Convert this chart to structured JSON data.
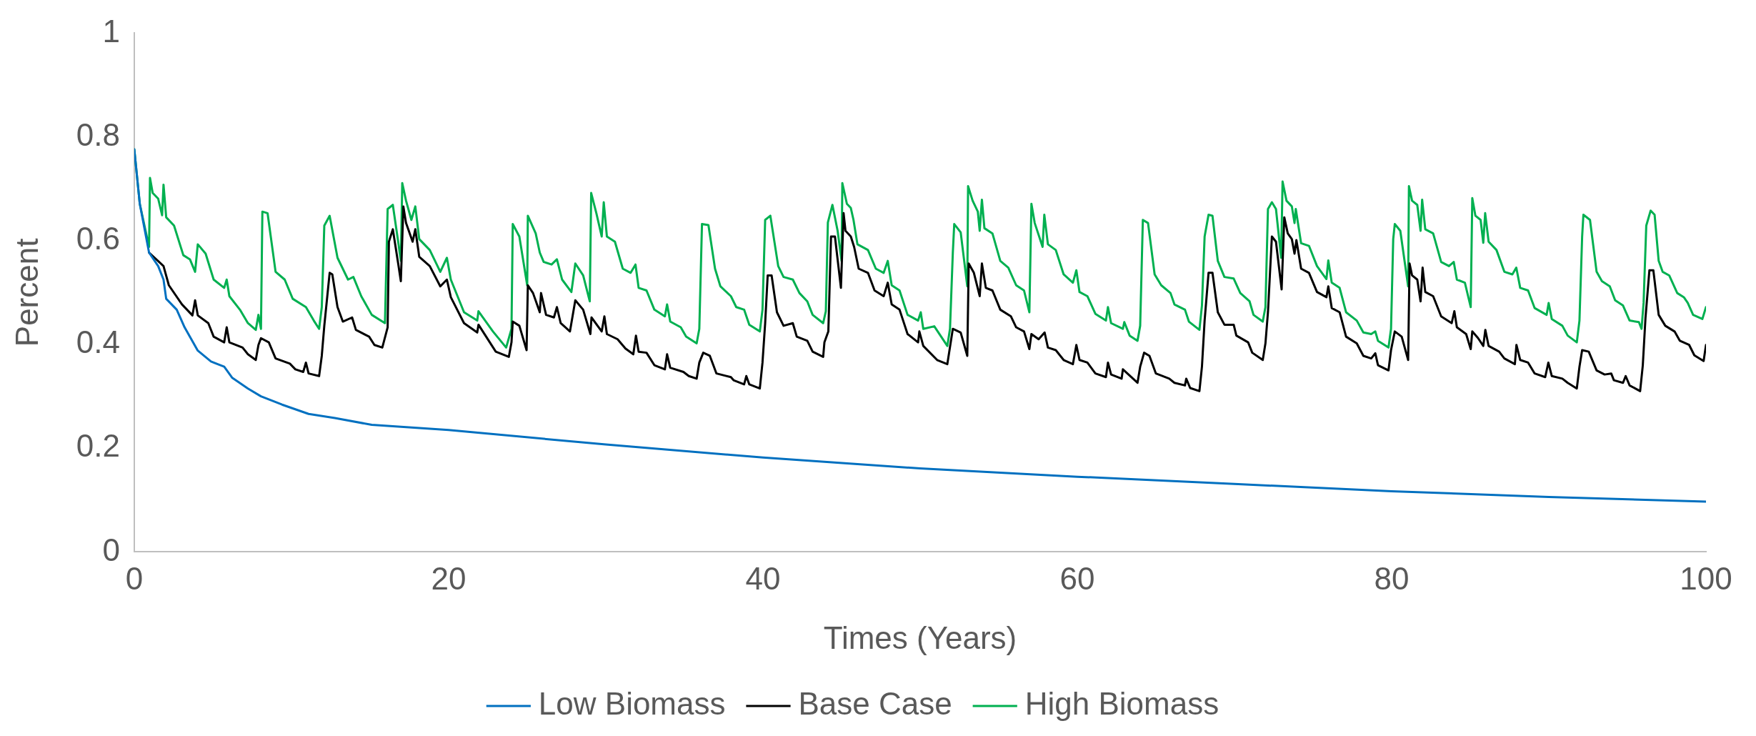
{
  "chart_data": {
    "type": "line",
    "xlabel": "Times (Years)",
    "ylabel": "Percent",
    "xlim": [
      0,
      100
    ],
    "xticks": [
      0,
      20,
      40,
      60,
      80,
      100
    ],
    "ylim": [
      0,
      1
    ],
    "yticks": [
      0,
      {
        "value": 0.2,
        "label": "0.2"
      },
      {
        "value": 0.4,
        "label": "0.4"
      },
      {
        "value": 0.6,
        "label": "0.6"
      },
      {
        "value": 0.8,
        "label": "0.8"
      },
      1
    ],
    "grid": false,
    "legend": "bottom",
    "marker": "none",
    "line_style": "solid",
    "series": [
      {
        "name": "Low Biomass",
        "color": "#0070c0",
        "x": [
          0,
          0.35,
          0.94,
          1.52,
          1.86,
          2.03,
          2.7,
          3.2,
          4.04,
          4.88,
          5.72,
          6.22,
          7.23,
          8.06,
          9.4,
          11.09,
          12.76,
          15.11,
          20,
          30,
          40,
          50,
          60,
          70,
          80,
          90,
          100
        ],
        "values": [
          0.776,
          0.671,
          0.577,
          0.551,
          0.525,
          0.488,
          0.467,
          0.433,
          0.388,
          0.367,
          0.357,
          0.336,
          0.315,
          0.3,
          0.284,
          0.266,
          0.258,
          0.245,
          0.235,
          0.207,
          0.182,
          0.161,
          0.145,
          0.131,
          0.117,
          0.106,
          0.097
        ]
      },
      {
        "name": "Base Case",
        "color": "#000000",
        "x": [
          0.94,
          1.86,
          2.2,
          3.04,
          3.7,
          3.87,
          4.04,
          4.71,
          5.05,
          5.72,
          5.88,
          6.05,
          6.89,
          7.23,
          7.73,
          7.9,
          8.06,
          8.56,
          8.99,
          9.9,
          10.25,
          10.75,
          10.92,
          11.09,
          11.76,
          11.93,
          12.09,
          12.43,
          12.6,
          12.93,
          13.27,
          13.86,
          14.1,
          14.94,
          15.28,
          15.78,
          16.12,
          16.2,
          16.45,
          16.79,
          16.96,
          17.12,
          17.29,
          17.71,
          17.88,
          18.13,
          18.8,
          19.47,
          19.89,
          20.14,
          20.98,
          21.82,
          21.9,
          23,
          23.83,
          24,
          24.08,
          24.5,
          24.96,
          25.04,
          25.37,
          25.8,
          25.88,
          26.2,
          26.7,
          26.89,
          27.13,
          27.72,
          28.06,
          28.56,
          29.02,
          29.09,
          29.74,
          29.91,
          30.07,
          30.75,
          31.25,
          31.75,
          31.92,
          32.09,
          32.59,
          33.09,
          33.76,
          33.9,
          34.1,
          34.94,
          35.28,
          35.78,
          35.95,
          36.2,
          36.62,
          37.04,
          37.96,
          38.13,
          38.8,
          38.94,
          39.13,
          39.8,
          39.97,
          40.14,
          40.3,
          40.55,
          40.89,
          41.31,
          41.9,
          42.15,
          42.82,
          43.16,
          43.83,
          43.91,
          44.16,
          44.33,
          44.58,
          44.96,
          45.13,
          45.25,
          45.59,
          45.8,
          46.09,
          46.68,
          47.1,
          47.68,
          47.94,
          48.19,
          48.69,
          49.2,
          49.87,
          49.95,
          50.2,
          51.08,
          51.73,
          52.08,
          52.58,
          53,
          53.09,
          53.42,
          53.79,
          53.93,
          54.18,
          54.6,
          55.1,
          55.78,
          56.11,
          56.61,
          56.95,
          57.08,
          57.54,
          57.92,
          58.13,
          58.63,
          59.13,
          59.72,
          59.94,
          60.14,
          60.64,
          61.15,
          61.82,
          61.95,
          62.15,
          62.82,
          62.9,
          63.83,
          64,
          64.25,
          64.59,
          65,
          65.85,
          66.18,
          66.85,
          66.93,
          67.18,
          67.77,
          67.93,
          68.1,
          68.35,
          68.6,
          68.94,
          69.36,
          69.95,
          70.12,
          70.87,
          71.13,
          71.8,
          71.97,
          72.13,
          72.38,
          72.64,
          73,
          73.17,
          73.39,
          73.65,
          73.82,
          73.94,
          74.24,
          74.74,
          75.25,
          75.85,
          75.97,
          76.19,
          76.69,
          77.1,
          77.78,
          78.2,
          78.7,
          78.96,
          79.13,
          79.8,
          79.96,
          80.2,
          80.64,
          81.05,
          81.14,
          81.3,
          81.63,
          81.84,
          81.97,
          82.14,
          82.64,
          83.15,
          83.82,
          83.99,
          84.15,
          84.74,
          85.03,
          85.13,
          85.5,
          85.83,
          85.96,
          86.17,
          86.84,
          87.17,
          87.84,
          87.94,
          88.18,
          88.68,
          89.1,
          89.77,
          89.97,
          90.19,
          90.86,
          91.2,
          91.78,
          91.95,
          92.12,
          92.54,
          93.04,
          93.55,
          93.97,
          94.14,
          94.72,
          94.89,
          95.14,
          95.81,
          95.98,
          96.15,
          96.4,
          96.65,
          96.99,
          97.41,
          98,
          98.34,
          98.93,
          99.26,
          99.85,
          100
        ],
        "values": [
          0.577,
          0.551,
          0.514,
          0.477,
          0.456,
          0.485,
          0.456,
          0.441,
          0.415,
          0.404,
          0.433,
          0.404,
          0.394,
          0.381,
          0.37,
          0.399,
          0.412,
          0.404,
          0.373,
          0.363,
          0.352,
          0.347,
          0.365,
          0.344,
          0.339,
          0.378,
          0.436,
          0.538,
          0.535,
          0.472,
          0.444,
          0.452,
          0.428,
          0.415,
          0.399,
          0.394,
          0.433,
          0.598,
          0.622,
          0.556,
          0.522,
          0.666,
          0.634,
          0.598,
          0.622,
          0.569,
          0.551,
          0.512,
          0.525,
          0.491,
          0.441,
          0.423,
          0.438,
          0.386,
          0.376,
          0.404,
          0.444,
          0.436,
          0.389,
          0.514,
          0.499,
          0.462,
          0.499,
          0.457,
          0.452,
          0.472,
          0.441,
          0.425,
          0.485,
          0.467,
          0.42,
          0.452,
          0.425,
          0.454,
          0.42,
          0.41,
          0.392,
          0.381,
          0.417,
          0.386,
          0.384,
          0.36,
          0.352,
          0.381,
          0.355,
          0.347,
          0.339,
          0.334,
          0.365,
          0.384,
          0.378,
          0.344,
          0.337,
          0.331,
          0.323,
          0.339,
          0.323,
          0.315,
          0.365,
          0.441,
          0.533,
          0.533,
          0.462,
          0.436,
          0.441,
          0.415,
          0.407,
          0.386,
          0.376,
          0.404,
          0.425,
          0.608,
          0.608,
          0.509,
          0.653,
          0.619,
          0.608,
          0.588,
          0.546,
          0.538,
          0.504,
          0.493,
          0.519,
          0.477,
          0.467,
          0.42,
          0.404,
          0.425,
          0.397,
          0.37,
          0.362,
          0.43,
          0.423,
          0.378,
          0.556,
          0.538,
          0.493,
          0.556,
          0.509,
          0.504,
          0.467,
          0.454,
          0.433,
          0.425,
          0.391,
          0.42,
          0.41,
          0.423,
          0.394,
          0.389,
          0.37,
          0.362,
          0.399,
          0.37,
          0.365,
          0.344,
          0.337,
          0.365,
          0.342,
          0.334,
          0.352,
          0.326,
          0.357,
          0.384,
          0.378,
          0.344,
          0.334,
          0.326,
          0.321,
          0.334,
          0.316,
          0.31,
          0.357,
          0.446,
          0.538,
          0.538,
          0.462,
          0.438,
          0.438,
          0.417,
          0.404,
          0.384,
          0.37,
          0.402,
          0.462,
          0.608,
          0.598,
          0.506,
          0.645,
          0.614,
          0.603,
          0.575,
          0.601,
          0.546,
          0.538,
          0.501,
          0.491,
          0.512,
          0.47,
          0.462,
          0.415,
          0.402,
          0.378,
          0.373,
          0.383,
          0.36,
          0.35,
          0.389,
          0.425,
          0.415,
          0.37,
          0.556,
          0.533,
          0.525,
          0.483,
          0.548,
          0.501,
          0.493,
          0.454,
          0.441,
          0.464,
          0.433,
          0.42,
          0.391,
          0.425,
          0.412,
          0.397,
          0.428,
          0.397,
          0.386,
          0.373,
          0.362,
          0.399,
          0.37,
          0.365,
          0.344,
          0.337,
          0.365,
          0.339,
          0.334,
          0.326,
          0.315,
          0.357,
          0.389,
          0.386,
          0.35,
          0.342,
          0.344,
          0.331,
          0.326,
          0.339,
          0.321,
          0.31,
          0.36,
          0.451,
          0.543,
          0.543,
          0.457,
          0.436,
          0.425,
          0.407,
          0.399,
          0.379,
          0.368,
          0.399
        ]
      },
      {
        "name": "High Biomass",
        "color": "#00b050",
        "x": [
          0,
          0.35,
          0.94,
          1,
          1.17,
          1.52,
          1.77,
          1.86,
          2.03,
          2.53,
          3.12,
          3.54,
          3.87,
          4.04,
          4.54,
          5.05,
          5.72,
          5.88,
          6.05,
          6.72,
          7.23,
          7.73,
          7.9,
          8.06,
          8.15,
          8.48,
          8.99,
          9.57,
          10.08,
          10.92,
          11.42,
          11.76,
          11.93,
          12.09,
          12.43,
          12.93,
          13.6,
          13.94,
          14.44,
          15.11,
          15.95,
          16.12,
          16.45,
          16.79,
          16.96,
          17.05,
          17.29,
          17.63,
          17.88,
          18.13,
          18.8,
          19.47,
          19.89,
          20.14,
          20.98,
          21.82,
          21.9,
          22.82,
          23.66,
          24,
          24.08,
          24.5,
          25,
          25.04,
          25.54,
          25.8,
          26.05,
          26.55,
          26.89,
          27.22,
          27.81,
          28.06,
          28.56,
          28.98,
          29.07,
          29.4,
          29.74,
          29.87,
          30.07,
          30.58,
          31.08,
          31.58,
          31.89,
          32.09,
          32.59,
          33.09,
          33.76,
          33.9,
          34.1,
          34.77,
          35.11,
          35.78,
          35.95,
          36.12,
          36.53,
          36.95,
          37.29,
          37.96,
          38.3,
          38.8,
          39.13,
          39.8,
          39.97,
          40.14,
          40.47,
          40.97,
          41.31,
          41.9,
          42.32,
          42.82,
          43.16,
          43.83,
          44,
          44.13,
          44.42,
          44.75,
          45,
          45.05,
          45.34,
          45.59,
          45.76,
          46.01,
          46.68,
          47.18,
          47.68,
          47.94,
          48.19,
          48.69,
          49.2,
          49.87,
          50.04,
          50.2,
          50.9,
          51.73,
          51.9,
          52.08,
          52.17,
          52.58,
          53,
          53.05,
          53.34,
          53.67,
          53.79,
          53.93,
          54.09,
          54.6,
          55.1,
          55.61,
          56.11,
          56.61,
          56.95,
          57.08,
          57.29,
          57.79,
          57.9,
          58.13,
          58.63,
          59.13,
          59.72,
          59.94,
          60.14,
          60.64,
          61.15,
          61.82,
          61.95,
          62.15,
          62.9,
          62.99,
          63.33,
          63.83,
          64,
          64.17,
          64.5,
          64.92,
          65.34,
          65.93,
          66.18,
          66.85,
          67.1,
          67.77,
          67.93,
          68.1,
          68.35,
          68.6,
          68.94,
          69.36,
          69.95,
          70.37,
          70.96,
          71.21,
          71.8,
          71.97,
          72.13,
          72.38,
          72.64,
          72.97,
          73.06,
          73.31,
          73.65,
          73.82,
          73.9,
          74.24,
          74.74,
          75.25,
          75.85,
          75.97,
          76.19,
          76.69,
          77.1,
          77.78,
          78.2,
          78.7,
          78.96,
          79.13,
          79.8,
          79.96,
          80.1,
          80.2,
          80.55,
          81.05,
          81.1,
          81.3,
          81.63,
          81.84,
          81.94,
          82.14,
          82.64,
          83.15,
          83.65,
          83.95,
          84.15,
          84.66,
          85.03,
          85.13,
          85.33,
          85.66,
          85.83,
          85.95,
          86.17,
          86.67,
          87.17,
          87.68,
          87.93,
          88.18,
          88.68,
          89.1,
          89.86,
          89.99,
          90.19,
          90.86,
          91.2,
          91.78,
          91.95,
          92.12,
          92.2,
          92.62,
          93.04,
          93.38,
          93.88,
          94.22,
          94.72,
          95.14,
          95.73,
          95.9,
          96.03,
          96.2,
          96.48,
          96.73,
          96.99,
          97.24,
          97.66,
          98.17,
          98.59,
          98.84,
          99.18,
          99.77,
          100
        ],
        "values": [
          0.776,
          0.671,
          0.588,
          0.721,
          0.692,
          0.681,
          0.649,
          0.708,
          0.645,
          0.629,
          0.572,
          0.564,
          0.54,
          0.593,
          0.575,
          0.525,
          0.509,
          0.525,
          0.493,
          0.467,
          0.441,
          0.428,
          0.457,
          0.43,
          0.656,
          0.653,
          0.54,
          0.525,
          0.488,
          0.472,
          0.446,
          0.43,
          0.472,
          0.629,
          0.648,
          0.567,
          0.525,
          0.53,
          0.493,
          0.457,
          0.441,
          0.661,
          0.669,
          0.598,
          0.561,
          0.711,
          0.677,
          0.64,
          0.666,
          0.603,
          0.582,
          0.54,
          0.567,
          0.525,
          0.462,
          0.446,
          0.464,
          0.425,
          0.394,
          0.43,
          0.632,
          0.608,
          0.514,
          0.648,
          0.614,
          0.577,
          0.559,
          0.554,
          0.564,
          0.525,
          0.501,
          0.556,
          0.533,
          0.483,
          0.692,
          0.653,
          0.608,
          0.674,
          0.608,
          0.598,
          0.546,
          0.538,
          0.554,
          0.509,
          0.504,
          0.467,
          0.454,
          0.477,
          0.444,
          0.433,
          0.415,
          0.402,
          0.43,
          0.632,
          0.63,
          0.546,
          0.512,
          0.493,
          0.472,
          0.467,
          0.438,
          0.425,
          0.467,
          0.64,
          0.648,
          0.551,
          0.53,
          0.525,
          0.499,
          0.483,
          0.457,
          0.441,
          0.464,
          0.635,
          0.669,
          0.619,
          0.561,
          0.711,
          0.671,
          0.663,
          0.64,
          0.593,
          0.582,
          0.546,
          0.538,
          0.561,
          0.514,
          0.504,
          0.457,
          0.446,
          0.462,
          0.43,
          0.435,
          0.397,
          0.43,
          0.577,
          0.632,
          0.616,
          0.512,
          0.705,
          0.677,
          0.656,
          0.619,
          0.679,
          0.624,
          0.614,
          0.561,
          0.548,
          0.514,
          0.504,
          0.462,
          0.671,
          0.634,
          0.588,
          0.65,
          0.593,
          0.582,
          0.535,
          0.519,
          0.543,
          0.501,
          0.493,
          0.459,
          0.446,
          0.472,
          0.441,
          0.43,
          0.443,
          0.417,
          0.407,
          0.436,
          0.64,
          0.634,
          0.535,
          0.514,
          0.499,
          0.477,
          0.467,
          0.444,
          0.428,
          0.475,
          0.608,
          0.65,
          0.648,
          0.561,
          0.53,
          0.527,
          0.499,
          0.483,
          0.457,
          0.444,
          0.472,
          0.661,
          0.674,
          0.661,
          0.567,
          0.714,
          0.677,
          0.666,
          0.634,
          0.661,
          0.595,
          0.59,
          0.551,
          0.526,
          0.562,
          0.519,
          0.509,
          0.462,
          0.446,
          0.423,
          0.42,
          0.425,
          0.407,
          0.394,
          0.43,
          0.603,
          0.632,
          0.619,
          0.512,
          0.705,
          0.677,
          0.669,
          0.619,
          0.679,
          0.622,
          0.614,
          0.559,
          0.551,
          0.559,
          0.525,
          0.519,
          0.472,
          0.682,
          0.648,
          0.64,
          0.596,
          0.653,
          0.598,
          0.582,
          0.54,
          0.535,
          0.548,
          0.509,
          0.504,
          0.47,
          0.457,
          0.48,
          0.449,
          0.436,
          0.417,
          0.404,
          0.446,
          0.608,
          0.65,
          0.64,
          0.54,
          0.522,
          0.512,
          0.485,
          0.475,
          0.446,
          0.443,
          0.43,
          0.48,
          0.629,
          0.658,
          0.65,
          0.561,
          0.54,
          0.533,
          0.499,
          0.491,
          0.48,
          0.457,
          0.449,
          0.472
        ]
      }
    ]
  }
}
